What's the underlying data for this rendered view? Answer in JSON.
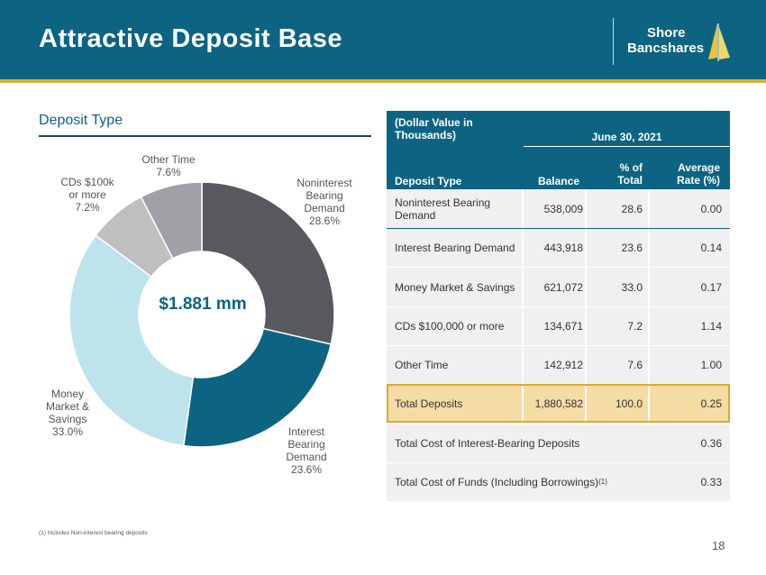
{
  "header": {
    "title": "Attractive Deposit Base",
    "logo_line1": "Shore",
    "logo_line2": "Bancshares"
  },
  "section_title": "Deposit Type",
  "center_label": "$1.881 mm",
  "colors": {
    "header": "#0d6382",
    "accent": "#d9b233",
    "highlight_bg": "#f5dca4",
    "highlight_border": "#d9a935"
  },
  "chart_data": {
    "type": "pie",
    "style": "donut",
    "center_text": "$1.881 mm",
    "slices": [
      {
        "name": "Noninterest Bearing Demand",
        "value": 28.6,
        "label_lines": [
          "Noninterest",
          "Bearing",
          "Demand",
          "28.6%"
        ],
        "color": "#58595e"
      },
      {
        "name": "Interest Bearing Demand",
        "value": 23.6,
        "label_lines": [
          "Interest",
          "Bearing",
          "Demand",
          "23.6%"
        ],
        "color": "#0d6382"
      },
      {
        "name": "Money Market & Savings",
        "value": 33.0,
        "label_lines": [
          "Money",
          "Market &",
          "Savings",
          "33.0%"
        ],
        "color": "#bde3ec"
      },
      {
        "name": "CDs $100k or more",
        "value": 7.2,
        "label_lines": [
          "CDs $100k",
          "or more",
          "7.2%"
        ],
        "color": "#bfbfbf"
      },
      {
        "name": "Other Time",
        "value": 7.6,
        "label_lines": [
          "Other Time",
          "7.6%"
        ],
        "color": "#a0a1a6"
      }
    ]
  },
  "table": {
    "top_left_header": "(Dollar Value in Thousands)",
    "period_header": "June 30, 2021",
    "col_headers": {
      "type": "Deposit Type",
      "balance": "Balance",
      "pct": "% of Total",
      "rate": "Average Rate (%)"
    },
    "rows": [
      {
        "type": "Noninterest Bearing Demand",
        "balance": "538,009",
        "pct": "28.6",
        "rate": "0.00"
      },
      {
        "type": "Interest Bearing Demand",
        "balance": "443,918",
        "pct": "23.6",
        "rate": "0.14"
      },
      {
        "type": "Money Market & Savings",
        "balance": "621,072",
        "pct": "33.0",
        "rate": "0.17"
      },
      {
        "type": "CDs $100,000 or more",
        "balance": "134,671",
        "pct": "7.2",
        "rate": "1.14"
      },
      {
        "type": "Other Time",
        "balance": "142,912",
        "pct": "7.6",
        "rate": "1.00"
      }
    ],
    "total": {
      "type": "Total Deposits",
      "balance": "1,880,582",
      "pct": "100.0",
      "rate": "0.25"
    },
    "summary": [
      {
        "label": "Total Cost of Interest-Bearing Deposits",
        "sup": "",
        "value": "0.36"
      },
      {
        "label": "Total Cost of Funds (Including Borrowings)",
        "sup": "(1)",
        "value": "0.33"
      }
    ]
  },
  "footnote": "(1) Includes Non-interest bearing deposits",
  "page_number": "18"
}
